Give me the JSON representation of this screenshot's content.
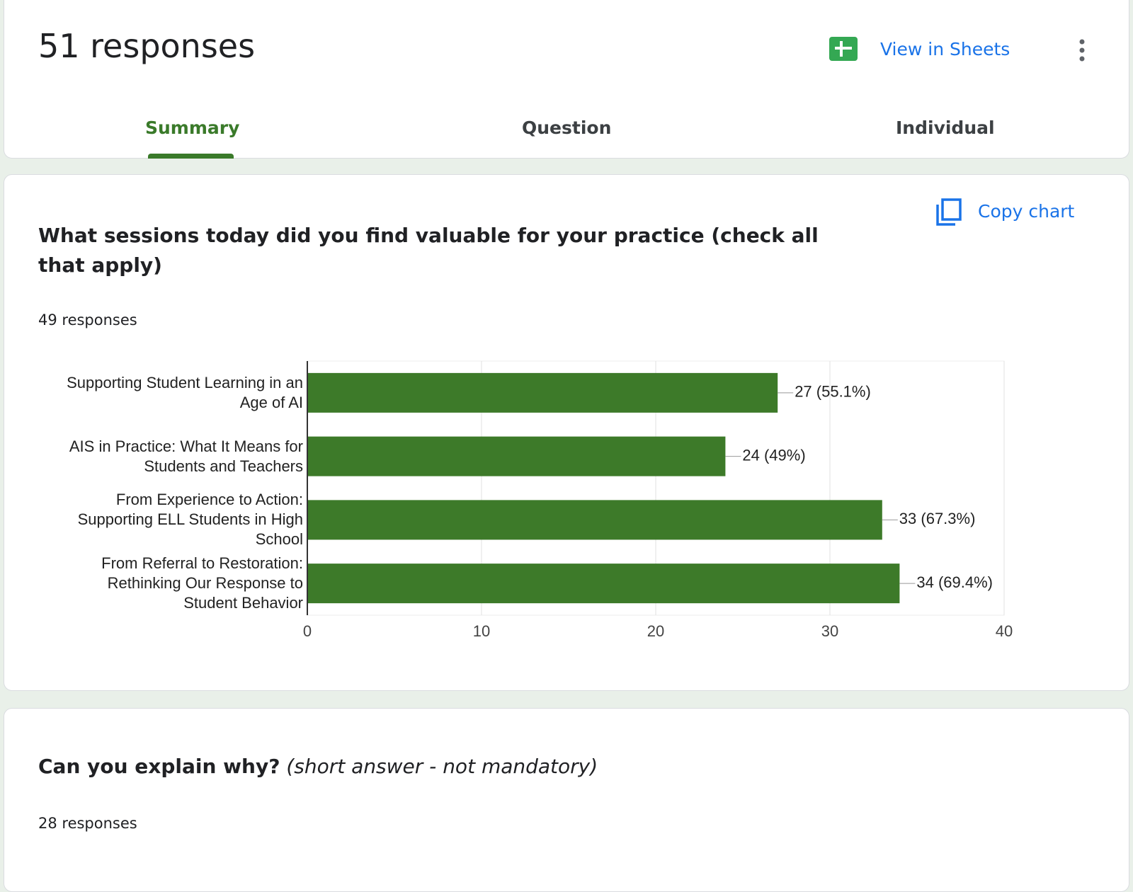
{
  "header": {
    "title": "51 responses",
    "view_in_sheets": "View in Sheets"
  },
  "tabs": [
    "Summary",
    "Question",
    "Individual"
  ],
  "questions": [
    {
      "title": "What sessions today did you find valuable for your practice (check all that apply)",
      "copy_chart": "Copy chart",
      "responses": "49 responses"
    },
    {
      "title": "Can you explain why?",
      "note": "(short answer - not mandatory)",
      "responses": "28 responses"
    }
  ],
  "chart_data": {
    "type": "bar",
    "orientation": "horizontal",
    "categories": [
      "Supporting Student Learning in an Age of AI",
      "AIS in Practice: What It Means for Students and Teachers",
      "From Experience to Action: Supporting ELL Students in High School",
      "From Referral to Restoration: Rethinking Our Response to Student Behavior"
    ],
    "values": [
      27,
      24,
      33,
      34
    ],
    "value_labels": [
      "27 (55.1%)",
      "24 (49%)",
      "33 (67.3%)",
      "34 (69.4%)"
    ],
    "color": "#3d7a29",
    "xlim": [
      0,
      40
    ],
    "xticks": [
      0,
      10,
      20,
      30,
      40
    ],
    "grid": true
  }
}
